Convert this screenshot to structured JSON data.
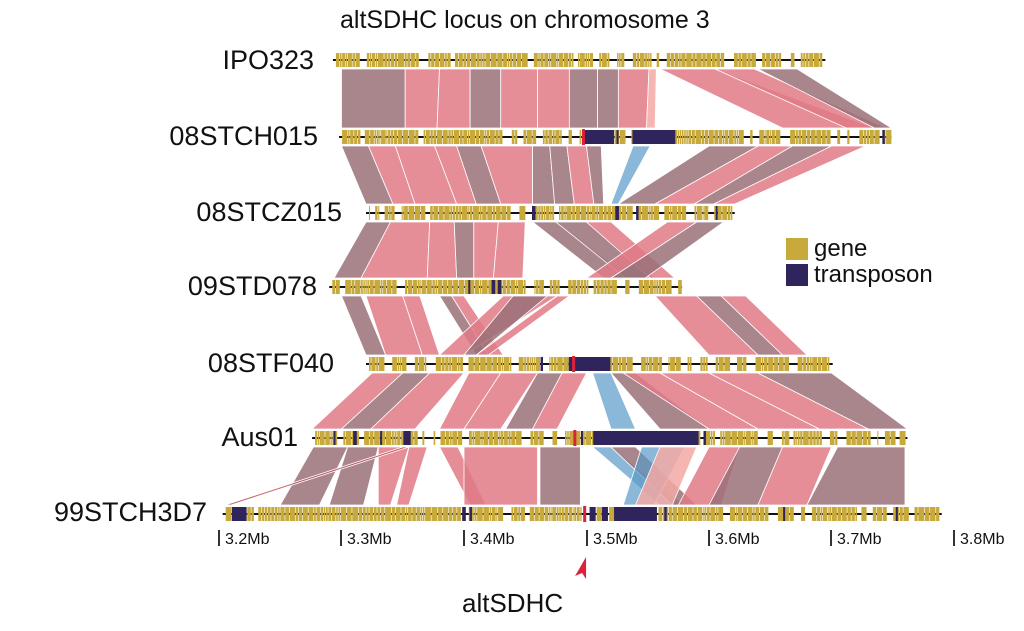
{
  "title": "altSDHC locus on chromosome 3",
  "colors": {
    "gene": "#c8aa3c",
    "transposon": "#30245c",
    "backbone": "#111111",
    "link_pink": "#e07a86",
    "link_mauve": "#9a7078",
    "link_blue": "#5a9ac8",
    "marker": "#e0203a"
  },
  "strains": [
    {
      "name": "IPO323",
      "start_mb": 3.293,
      "end_mb": 3.695,
      "transposons": []
    },
    {
      "name": "08STCH015",
      "start_mb": 3.298,
      "end_mb": 3.749,
      "transposons": [
        [
          3.4975,
          3.5225
        ],
        [
          3.5245,
          3.5255
        ],
        [
          3.5375,
          3.5725
        ],
        [
          3.7415,
          3.7435
        ]
      ],
      "marker_mb": 3.4975
    },
    {
      "name": "08STCZ015",
      "start_mb": 3.32,
      "end_mb": 3.621,
      "transposons": [
        [
          3.4555,
          3.4585
        ],
        [
          3.5235,
          3.5265
        ],
        [
          3.5405,
          3.5425
        ],
        [
          3.6055,
          3.6065
        ]
      ]
    },
    {
      "name": "09STD078",
      "start_mb": 3.29,
      "end_mb": 3.578,
      "transposons": [
        [
          3.4035,
          3.4045
        ],
        [
          3.4225,
          3.4255
        ],
        [
          3.4275,
          3.4305
        ]
      ]
    },
    {
      "name": "08STF040",
      "start_mb": 3.32,
      "end_mb": 3.701,
      "transposons": [
        [
          3.4625,
          3.4645
        ],
        [
          3.4855,
          3.4885
        ],
        [
          3.4905,
          3.5195
        ]
      ],
      "marker_mb": 3.4895
    },
    {
      "name": "Aus01",
      "start_mb": 3.276,
      "end_mb": 3.762,
      "transposons": [
        [
          3.2935,
          3.2945
        ],
        [
          3.3095,
          3.3125
        ],
        [
          3.3315,
          3.3325
        ],
        [
          3.3505,
          3.3565
        ],
        [
          3.4955,
          3.4965
        ],
        [
          3.5055,
          3.5915
        ],
        [
          3.5955,
          3.5975
        ]
      ],
      "marker_mb": 3.4905
    },
    {
      "name": "99STCH3D7",
      "start_mb": 3.203,
      "end_mb": 3.79,
      "transposons": [
        [
          3.2105,
          3.2225
        ],
        [
          3.3985,
          3.4015
        ],
        [
          3.4045,
          3.4065
        ],
        [
          3.5025,
          3.5075
        ],
        [
          3.5125,
          3.5175
        ],
        [
          3.5225,
          3.5575
        ],
        [
          3.5635,
          3.5655
        ],
        [
          3.6605,
          3.6615
        ],
        [
          3.7525,
          3.7535
        ]
      ],
      "marker_mb": 3.4985
    }
  ],
  "legend": [
    {
      "label": "gene",
      "color": "#c8aa3c"
    },
    {
      "label": "transposon",
      "color": "#30245c"
    }
  ],
  "axis": {
    "ticks": [
      "3.2Mb",
      "3.3Mb",
      "3.4Mb",
      "3.5Mb",
      "3.6Mb",
      "3.7Mb",
      "3.8Mb"
    ],
    "tick_values": [
      3.2,
      3.3,
      3.4,
      3.5,
      3.6,
      3.7,
      3.8
    ]
  },
  "locus": {
    "label": "altSDHC",
    "position_mb": 3.498
  },
  "synteny": [
    {
      "pair": 0,
      "blocks": [
        [
          3.3,
          3.352,
          3.3,
          3.352,
          "m"
        ],
        [
          3.352,
          3.38,
          3.352,
          3.378,
          "p"
        ],
        [
          3.38,
          3.405,
          3.378,
          3.405,
          "p"
        ],
        [
          3.405,
          3.43,
          3.405,
          3.43,
          "m"
        ],
        [
          3.43,
          3.46,
          3.43,
          3.46,
          "p"
        ],
        [
          3.46,
          3.486,
          3.46,
          3.486,
          "p"
        ],
        [
          3.486,
          3.509,
          3.486,
          3.509,
          "m"
        ],
        [
          3.509,
          3.526,
          3.509,
          3.526,
          "m"
        ],
        [
          3.526,
          3.551,
          3.526,
          3.549,
          "p"
        ],
        [
          3.551,
          3.557,
          3.549,
          3.556,
          "l"
        ],
        [
          3.56,
          3.605,
          3.66,
          3.735,
          "p"
        ],
        [
          3.605,
          3.637,
          3.712,
          3.745,
          "p"
        ],
        [
          3.64,
          3.672,
          3.735,
          3.749,
          "m"
        ]
      ]
    },
    {
      "pair": 1,
      "blocks": [
        [
          3.3,
          3.322,
          3.32,
          3.342,
          "m"
        ],
        [
          3.322,
          3.344,
          3.342,
          3.36,
          "p"
        ],
        [
          3.344,
          3.376,
          3.36,
          3.394,
          "p"
        ],
        [
          3.376,
          3.394,
          3.394,
          3.41,
          "p"
        ],
        [
          3.394,
          3.414,
          3.41,
          3.43,
          "m"
        ],
        [
          3.414,
          3.456,
          3.43,
          3.456,
          "p"
        ],
        [
          3.456,
          3.47,
          3.456,
          3.474,
          "m"
        ],
        [
          3.47,
          3.484,
          3.474,
          3.49,
          "m"
        ],
        [
          3.484,
          3.5,
          3.49,
          3.506,
          "p"
        ],
        [
          3.5,
          3.512,
          3.506,
          3.514,
          "m"
        ],
        [
          3.538,
          3.552,
          3.52,
          3.526,
          "b"
        ],
        [
          3.6,
          3.64,
          3.526,
          3.556,
          "m"
        ],
        [
          3.64,
          3.668,
          3.556,
          3.588,
          "p"
        ],
        [
          3.668,
          3.7,
          3.588,
          3.604,
          "m"
        ],
        [
          3.7,
          3.728,
          3.604,
          3.621,
          "p"
        ]
      ]
    },
    {
      "pair": 2,
      "blocks": [
        [
          3.32,
          3.34,
          3.294,
          3.316,
          "m"
        ],
        [
          3.34,
          3.372,
          3.316,
          3.37,
          "p"
        ],
        [
          3.372,
          3.392,
          3.37,
          3.394,
          "p"
        ],
        [
          3.392,
          3.408,
          3.394,
          3.408,
          "m"
        ],
        [
          3.408,
          3.428,
          3.408,
          3.424,
          "p"
        ],
        [
          3.428,
          3.45,
          3.424,
          3.448,
          "p"
        ],
        [
          3.456,
          3.475,
          3.514,
          3.536,
          "m"
        ],
        [
          3.475,
          3.5,
          3.532,
          3.556,
          "m"
        ],
        [
          3.5,
          3.52,
          3.552,
          3.572,
          "p"
        ],
        [
          3.566,
          3.59,
          3.5,
          3.52,
          "p"
        ],
        [
          3.59,
          3.612,
          3.52,
          3.548,
          "m"
        ]
      ]
    },
    {
      "pair": 3,
      "blocks": [
        [
          3.3,
          3.316,
          3.32,
          3.336,
          "m"
        ],
        [
          3.32,
          3.35,
          3.336,
          3.366,
          "p"
        ],
        [
          3.35,
          3.364,
          3.366,
          3.38,
          "p"
        ],
        [
          3.38,
          3.39,
          3.41,
          3.42,
          "m"
        ],
        [
          3.39,
          3.4,
          3.42,
          3.432,
          "p"
        ],
        [
          3.432,
          3.476,
          3.38,
          3.4,
          "p"
        ],
        [
          3.44,
          3.468,
          3.4,
          3.41,
          "m"
        ],
        [
          3.476,
          3.486,
          3.41,
          3.42,
          "p"
        ],
        [
          3.556,
          3.59,
          3.6,
          3.64,
          "p"
        ],
        [
          3.59,
          3.61,
          3.64,
          3.66,
          "m"
        ],
        [
          3.61,
          3.63,
          3.66,
          3.68,
          "p"
        ]
      ]
    },
    {
      "pair": 4,
      "blocks": [
        [
          3.325,
          3.35,
          3.276,
          3.3,
          "p"
        ],
        [
          3.35,
          3.372,
          3.3,
          3.324,
          "m"
        ],
        [
          3.372,
          3.4,
          3.324,
          3.36,
          "p"
        ],
        [
          3.404,
          3.43,
          3.38,
          3.4,
          "p"
        ],
        [
          3.43,
          3.46,
          3.4,
          3.43,
          "p"
        ],
        [
          3.46,
          3.48,
          3.434,
          3.456,
          "m"
        ],
        [
          3.48,
          3.5,
          3.456,
          3.476,
          "p"
        ],
        [
          3.505,
          3.52,
          3.52,
          3.54,
          "b"
        ],
        [
          3.52,
          3.54,
          3.56,
          3.6,
          "m"
        ],
        [
          3.53,
          3.56,
          3.6,
          3.64,
          "p"
        ],
        [
          3.56,
          3.6,
          3.64,
          3.69,
          "p"
        ],
        [
          3.6,
          3.64,
          3.69,
          3.73,
          "p"
        ],
        [
          3.64,
          3.7,
          3.73,
          3.762,
          "m"
        ]
      ]
    },
    {
      "pair": 5,
      "blocks": [
        [
          3.277,
          3.305,
          3.25,
          3.282,
          "m"
        ],
        [
          3.305,
          3.33,
          3.29,
          3.318,
          "m"
        ],
        [
          3.33,
          3.355,
          3.33,
          3.34,
          "p"
        ],
        [
          3.355,
          3.37,
          3.345,
          3.355,
          "p"
        ],
        [
          3.38,
          3.395,
          3.405,
          3.418,
          "p"
        ],
        [
          3.4,
          3.46,
          3.4,
          3.46,
          "p"
        ],
        [
          3.462,
          3.495,
          3.462,
          3.495,
          "m"
        ],
        [
          3.505,
          3.52,
          3.56,
          3.58,
          "b"
        ],
        [
          3.52,
          3.54,
          3.57,
          3.59,
          "m"
        ],
        [
          3.545,
          3.58,
          3.53,
          3.555,
          "b"
        ],
        [
          3.56,
          3.59,
          3.54,
          3.57,
          "l"
        ],
        [
          3.6,
          3.625,
          3.575,
          3.61,
          "p"
        ],
        [
          3.625,
          3.66,
          3.6,
          3.64,
          "m"
        ],
        [
          3.66,
          3.7,
          3.64,
          3.68,
          "p"
        ],
        [
          3.705,
          3.76,
          3.68,
          3.76,
          "m"
        ],
        [
          3.35,
          3.355,
          3.205,
          3.21,
          "t"
        ]
      ]
    }
  ]
}
